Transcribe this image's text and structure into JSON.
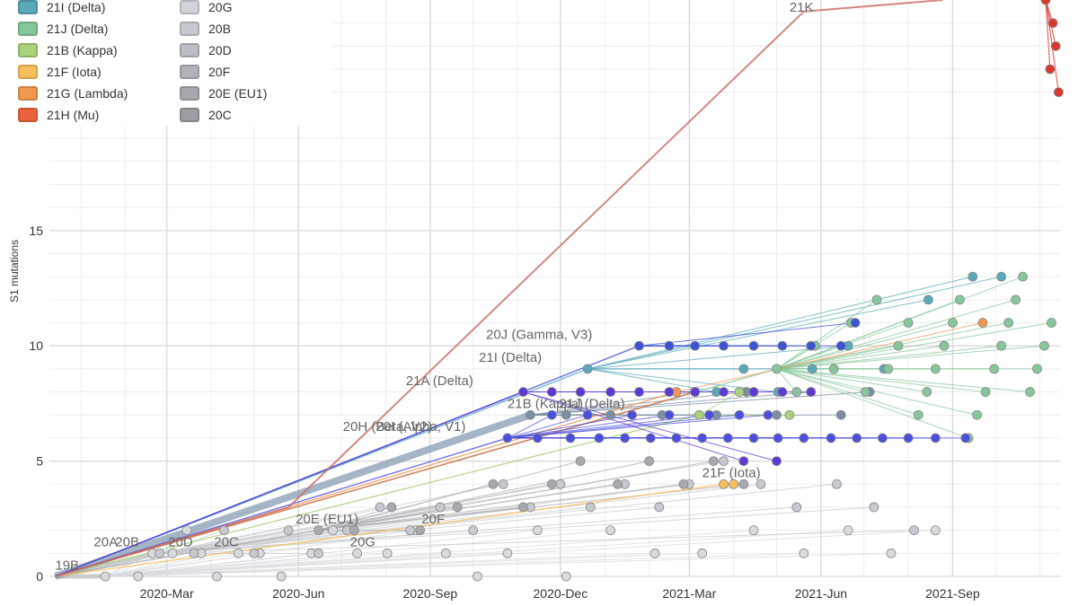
{
  "chart_data": {
    "type": "scatter",
    "title": "",
    "xlabel": "",
    "ylabel": "S1 mutations",
    "xlim": [
      "2019-12-10",
      "2021-11-15"
    ],
    "ylim": [
      0,
      25
    ],
    "x_ticks": [
      {
        "date": "2020-03-01",
        "label": "2020-Mar"
      },
      {
        "date": "2020-06-01",
        "label": "2020-Jun"
      },
      {
        "date": "2020-09-01",
        "label": "2020-Sep"
      },
      {
        "date": "2020-12-01",
        "label": "2020-Dec"
      },
      {
        "date": "2021-03-01",
        "label": "2021-Mar"
      },
      {
        "date": "2021-06-01",
        "label": "2021-Jun"
      },
      {
        "date": "2021-09-01",
        "label": "2021-Sep"
      }
    ],
    "y_ticks": [
      0,
      5,
      10,
      15
    ],
    "grid": true,
    "legend": {
      "placement": "top-left",
      "columns": [
        [
          {
            "name": "21I (Delta)",
            "color": "#59a9b9"
          },
          {
            "name": "21J (Delta)",
            "color": "#85c79b"
          },
          {
            "name": "21B (Kappa)",
            "color": "#a9d27a"
          },
          {
            "name": "21F (Iota)",
            "color": "#f7bf5b"
          },
          {
            "name": "21G (Lambda)",
            "color": "#f0984f"
          },
          {
            "name": "21H (Mu)",
            "color": "#e9643c"
          }
        ],
        [
          {
            "name": "20G",
            "color": "#d0d3d9"
          },
          {
            "name": "20B",
            "color": "#c6c9cf"
          },
          {
            "name": "20D",
            "color": "#bbbec4"
          },
          {
            "name": "20F",
            "color": "#b1b3b9"
          },
          {
            "name": "20E (EU1)",
            "color": "#a7a9ae"
          },
          {
            "name": "20C",
            "color": "#9c9ea3"
          }
        ]
      ]
    },
    "clade_labels": [
      {
        "text": "19B",
        "date": "2019-12-14",
        "y": 0.3
      },
      {
        "text": "20A",
        "date": "2020-01-10",
        "y": 1.3
      },
      {
        "text": "20B",
        "date": "2020-01-25",
        "y": 1.3
      },
      {
        "text": "20D",
        "date": "2020-03-02",
        "y": 1.3
      },
      {
        "text": "20C",
        "date": "2020-04-03",
        "y": 1.3
      },
      {
        "text": "20E (EU1)",
        "date": "2020-05-30",
        "y": 2.3
      },
      {
        "text": "20G",
        "date": "2020-07-07",
        "y": 1.3
      },
      {
        "text": "20F",
        "date": "2020-08-26",
        "y": 2.3
      },
      {
        "text": "20H (Beta, V2)",
        "date": "2020-07-02",
        "y": 6.3
      },
      {
        "text": "20I (Alpha, V1)",
        "date": "2020-07-25",
        "y": 6.3
      },
      {
        "text": "21A (Delta)",
        "date": "2020-08-15",
        "y": 8.3
      },
      {
        "text": "21I (Delta)",
        "date": "2020-10-05",
        "y": 9.3
      },
      {
        "text": "20J (Gamma, V3)",
        "date": "2020-10-10",
        "y": 10.3
      },
      {
        "text": "21B (Kappa)",
        "date": "2020-10-25",
        "y": 7.3
      },
      {
        "text": "21J (Delta)",
        "date": "2020-11-30",
        "y": 7.3
      },
      {
        "text": "21F (Iota)",
        "date": "2021-03-10",
        "y": 4.3
      },
      {
        "text": "21K",
        "date": "2021-05-10",
        "y": 24.5
      }
    ],
    "series": [
      {
        "name": "20A",
        "color": "#d8dade",
        "points": [
          [
            "2020-01-18",
            0
          ],
          [
            "2020-02-10",
            0
          ],
          [
            "2020-02-20",
            1
          ],
          [
            "2020-03-05",
            1
          ],
          [
            "2020-03-15",
            2
          ],
          [
            "2020-03-25",
            1
          ],
          [
            "2020-04-05",
            0
          ],
          [
            "2020-04-20",
            1
          ],
          [
            "2020-05-05",
            1
          ],
          [
            "2020-05-20",
            0
          ],
          [
            "2020-06-10",
            1
          ],
          [
            "2020-06-25",
            2
          ],
          [
            "2020-07-12",
            1
          ],
          [
            "2020-08-02",
            1
          ],
          [
            "2020-08-22",
            2
          ],
          [
            "2020-09-12",
            1
          ],
          [
            "2020-10-04",
            0
          ],
          [
            "2020-10-25",
            1
          ],
          [
            "2020-11-15",
            2
          ],
          [
            "2020-12-05",
            0
          ],
          [
            "2021-01-05",
            2
          ],
          [
            "2021-02-05",
            1
          ],
          [
            "2021-03-10",
            1
          ],
          [
            "2021-04-15",
            2
          ],
          [
            "2021-05-20",
            1
          ],
          [
            "2021-06-20",
            2
          ],
          [
            "2021-07-20",
            1
          ],
          [
            "2021-08-20",
            2
          ]
        ]
      },
      {
        "name": "20B",
        "color": "#c6c9cf",
        "points": [
          [
            "2020-02-25",
            1
          ],
          [
            "2020-03-20",
            1
          ],
          [
            "2020-04-10",
            2
          ],
          [
            "2020-05-01",
            1
          ],
          [
            "2020-05-25",
            2
          ],
          [
            "2020-06-15",
            1
          ],
          [
            "2020-07-05",
            2
          ],
          [
            "2020-07-28",
            3
          ],
          [
            "2020-08-18",
            2
          ],
          [
            "2020-09-08",
            3
          ],
          [
            "2020-10-01",
            2
          ],
          [
            "2020-10-22",
            4
          ],
          [
            "2020-11-10",
            3
          ],
          [
            "2020-12-01",
            4
          ],
          [
            "2020-12-22",
            3
          ],
          [
            "2021-01-15",
            4
          ],
          [
            "2021-02-08",
            3
          ],
          [
            "2021-03-01",
            4
          ],
          [
            "2021-03-25",
            5
          ],
          [
            "2021-04-20",
            4
          ],
          [
            "2021-05-15",
            3
          ],
          [
            "2021-06-12",
            4
          ],
          [
            "2021-07-08",
            3
          ],
          [
            "2021-08-05",
            2
          ]
        ]
      },
      {
        "name": "20E (EU1)",
        "color": "#a7a9ae",
        "points": [
          [
            "2020-06-15",
            2
          ],
          [
            "2020-07-10",
            2
          ],
          [
            "2020-08-05",
            3
          ],
          [
            "2020-08-25",
            2
          ],
          [
            "2020-09-20",
            3
          ],
          [
            "2020-10-15",
            4
          ],
          [
            "2020-11-05",
            3
          ],
          [
            "2020-11-25",
            4
          ],
          [
            "2020-12-15",
            5
          ],
          [
            "2021-01-10",
            4
          ],
          [
            "2021-02-01",
            5
          ],
          [
            "2021-02-25",
            4
          ],
          [
            "2021-03-18",
            5
          ],
          [
            "2021-04-08",
            4
          ]
        ]
      },
      {
        "name": "21A (Delta)",
        "color": "#7b8ea3",
        "points": [
          [
            "2020-11-10",
            7
          ],
          [
            "2020-12-05",
            7
          ],
          [
            "2021-01-05",
            7
          ],
          [
            "2021-02-10",
            7
          ],
          [
            "2021-03-05",
            8
          ],
          [
            "2021-03-20",
            7
          ],
          [
            "2021-04-10",
            8
          ],
          [
            "2021-05-01",
            7
          ],
          [
            "2021-05-25",
            8
          ],
          [
            "2021-06-15",
            7
          ],
          [
            "2021-07-05",
            8
          ]
        ]
      },
      {
        "name": "21I (Delta)",
        "color": "#59a9b9",
        "points": [
          [
            "2020-12-20",
            9
          ],
          [
            "2021-03-20",
            8
          ],
          [
            "2021-04-08",
            9
          ],
          [
            "2021-05-02",
            8
          ],
          [
            "2021-05-26",
            9
          ],
          [
            "2021-06-20",
            10
          ],
          [
            "2021-07-15",
            9
          ],
          [
            "2021-08-15",
            12
          ],
          [
            "2021-09-15",
            13
          ],
          [
            "2021-10-05",
            13
          ]
        ]
      },
      {
        "name": "21J (Delta)",
        "color": "#85c79b",
        "points": [
          [
            "2021-05-01",
            9
          ],
          [
            "2021-05-15",
            8
          ],
          [
            "2021-05-28",
            10
          ],
          [
            "2021-06-10",
            9
          ],
          [
            "2021-06-22",
            11
          ],
          [
            "2021-07-02",
            8
          ],
          [
            "2021-07-10",
            12
          ],
          [
            "2021-07-18",
            9
          ],
          [
            "2021-07-25",
            10
          ],
          [
            "2021-08-01",
            11
          ],
          [
            "2021-08-08",
            7
          ],
          [
            "2021-08-14",
            8
          ],
          [
            "2021-08-20",
            9
          ],
          [
            "2021-08-26",
            10
          ],
          [
            "2021-09-01",
            11
          ],
          [
            "2021-09-06",
            12
          ],
          [
            "2021-09-12",
            6
          ],
          [
            "2021-09-18",
            7
          ],
          [
            "2021-09-24",
            8
          ],
          [
            "2021-09-30",
            9
          ],
          [
            "2021-10-05",
            10
          ],
          [
            "2021-10-10",
            11
          ],
          [
            "2021-10-15",
            12
          ],
          [
            "2021-10-20",
            13
          ],
          [
            "2021-10-25",
            8
          ],
          [
            "2021-10-30",
            9
          ],
          [
            "2021-11-04",
            10
          ],
          [
            "2021-11-09",
            11
          ]
        ]
      },
      {
        "name": "21B (Kappa)",
        "color": "#a9d27a",
        "points": [
          [
            "2021-03-08",
            7
          ],
          [
            "2021-04-05",
            8
          ],
          [
            "2021-05-10",
            7
          ]
        ]
      },
      {
        "name": "21F (Iota)",
        "color": "#f7bf5b",
        "points": [
          [
            "2021-03-25",
            4
          ],
          [
            "2021-04-01",
            4
          ]
        ]
      },
      {
        "name": "21G (Lambda)",
        "color": "#f0984f",
        "points": [
          [
            "2021-09-22",
            11
          ],
          [
            "2021-02-20",
            8
          ]
        ]
      },
      {
        "name": "21H (Mu)",
        "color": "#e9643c",
        "points": [
          [
            "2021-03-05",
            8
          ]
        ]
      },
      {
        "name": "20I (Alpha, V1)",
        "color": "#4b4fe0",
        "points": [
          [
            "2020-10-25",
            6
          ],
          [
            "2020-11-15",
            6
          ],
          [
            "2020-12-08",
            6
          ],
          [
            "2020-12-28",
            6
          ],
          [
            "2021-01-15",
            6
          ],
          [
            "2021-02-02",
            6
          ],
          [
            "2021-02-20",
            6
          ],
          [
            "2021-03-10",
            6
          ],
          [
            "2021-03-28",
            6
          ],
          [
            "2021-04-15",
            6
          ],
          [
            "2021-05-02",
            6
          ],
          [
            "2021-05-20",
            6
          ],
          [
            "2021-06-08",
            6
          ],
          [
            "2021-06-26",
            6
          ],
          [
            "2021-07-14",
            6
          ],
          [
            "2021-08-01",
            6
          ],
          [
            "2021-08-20",
            6
          ],
          [
            "2021-09-10",
            6
          ],
          [
            "2020-11-25",
            7
          ],
          [
            "2020-12-20",
            7
          ],
          [
            "2021-01-20",
            7
          ],
          [
            "2021-02-15",
            7
          ],
          [
            "2021-03-15",
            7
          ],
          [
            "2021-04-05",
            7
          ],
          [
            "2021-04-25",
            7
          ]
        ]
      },
      {
        "name": "20J (Gamma, V3)",
        "color": "#3c53d6",
        "points": [
          [
            "2021-01-25",
            10
          ],
          [
            "2021-02-15",
            10
          ],
          [
            "2021-03-05",
            10
          ],
          [
            "2021-03-25",
            10
          ],
          [
            "2021-04-15",
            10
          ],
          [
            "2021-05-05",
            10
          ],
          [
            "2021-05-25",
            10
          ],
          [
            "2021-06-15",
            10
          ],
          [
            "2021-06-25",
            11
          ]
        ]
      },
      {
        "name": "20H (Beta, V2)",
        "color": "#5d3ad4",
        "points": [
          [
            "2020-11-05",
            8
          ],
          [
            "2020-11-25",
            8
          ],
          [
            "2020-12-15",
            8
          ],
          [
            "2021-01-05",
            8
          ],
          [
            "2021-01-25",
            8
          ],
          [
            "2021-02-15",
            8
          ],
          [
            "2021-03-05",
            8
          ],
          [
            "2021-03-25",
            8
          ],
          [
            "2021-04-15",
            8
          ],
          [
            "2021-05-05",
            8
          ],
          [
            "2021-05-25",
            8
          ],
          [
            "2021-04-08",
            5
          ],
          [
            "2021-05-01",
            5
          ]
        ]
      },
      {
        "name": "21K",
        "color": "#d9382f",
        "points": [
          [
            "2021-11-05",
            25
          ],
          [
            "2021-11-10",
            24
          ],
          [
            "2021-11-12",
            23
          ],
          [
            "2021-11-08",
            22
          ],
          [
            "2021-11-14",
            21
          ]
        ]
      }
    ]
  }
}
